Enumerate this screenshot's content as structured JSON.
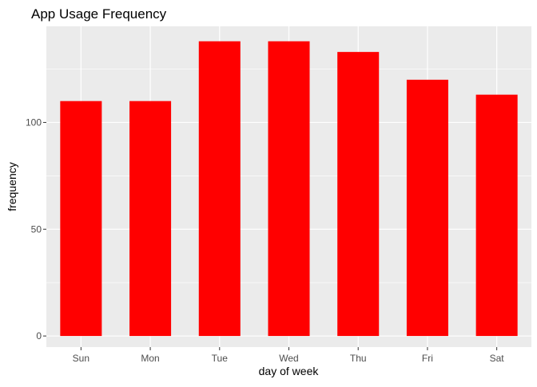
{
  "chart_data": {
    "type": "bar",
    "title": "App Usage Frequency",
    "xlabel": "day of week",
    "ylabel": "frequency",
    "categories": [
      "Sun",
      "Mon",
      "Tue",
      "Wed",
      "Thu",
      "Fri",
      "Sat"
    ],
    "values": [
      110,
      110,
      138,
      138,
      133,
      120,
      113
    ],
    "ylim": [
      -5.2,
      145
    ],
    "yticks": [
      0,
      50,
      100
    ],
    "ytick_labels": [
      "0",
      "50",
      "100"
    ],
    "grid": true,
    "legend": "none",
    "bar_color": "#FF0000",
    "panel_background": "#EBEBEB",
    "grid_color": "#FFFFFF"
  }
}
